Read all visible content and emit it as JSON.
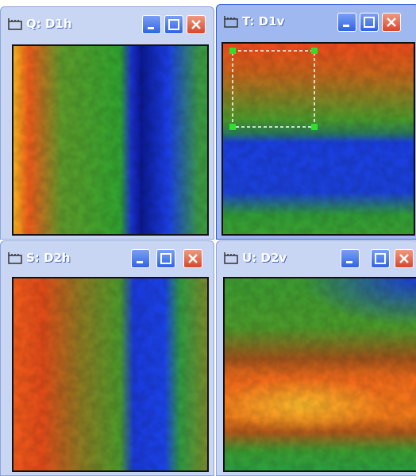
{
  "windows": [
    {
      "title": "Q: D1h"
    },
    {
      "title": "T: D1v"
    },
    {
      "title": "S: D2h"
    },
    {
      "title": "U: D2v"
    }
  ]
}
